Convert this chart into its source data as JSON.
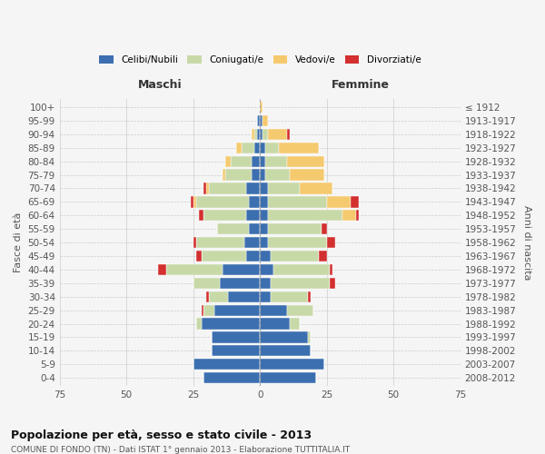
{
  "age_groups": [
    "100+",
    "95-99",
    "90-94",
    "85-89",
    "80-84",
    "75-79",
    "70-74",
    "65-69",
    "60-64",
    "55-59",
    "50-54",
    "45-49",
    "40-44",
    "35-39",
    "30-34",
    "25-29",
    "20-24",
    "15-19",
    "10-14",
    "5-9",
    "0-4"
  ],
  "birth_years": [
    "≤ 1912",
    "1913-1917",
    "1918-1922",
    "1923-1927",
    "1928-1932",
    "1933-1937",
    "1938-1942",
    "1943-1947",
    "1948-1952",
    "1953-1957",
    "1958-1962",
    "1963-1967",
    "1968-1972",
    "1973-1977",
    "1978-1982",
    "1983-1987",
    "1988-1992",
    "1993-1997",
    "1998-2002",
    "2003-2007",
    "2008-2012"
  ],
  "colors": {
    "celibe": "#3c6faf",
    "coniugato": "#c8d9a8",
    "vedovo": "#f5c96e",
    "divorziato": "#d32f2f"
  },
  "maschi": {
    "celibe": [
      0,
      1,
      1,
      2,
      3,
      3,
      5,
      4,
      5,
      4,
      6,
      5,
      14,
      15,
      12,
      17,
      22,
      18,
      18,
      25,
      21
    ],
    "coniugato": [
      0,
      0,
      1,
      5,
      8,
      10,
      14,
      20,
      16,
      12,
      18,
      17,
      21,
      10,
      7,
      4,
      2,
      0,
      0,
      0,
      0
    ],
    "vedovo": [
      0,
      0,
      1,
      2,
      2,
      1,
      1,
      1,
      0,
      0,
      0,
      0,
      0,
      0,
      0,
      0,
      0,
      0,
      0,
      0,
      0
    ],
    "divorziato": [
      0,
      0,
      0,
      0,
      0,
      0,
      1,
      1,
      2,
      0,
      1,
      2,
      3,
      0,
      1,
      1,
      0,
      0,
      0,
      0,
      0
    ]
  },
  "femmine": {
    "nubile": [
      0,
      1,
      1,
      2,
      2,
      2,
      3,
      3,
      3,
      3,
      3,
      4,
      5,
      4,
      4,
      10,
      11,
      18,
      19,
      24,
      21
    ],
    "coniugata": [
      0,
      0,
      2,
      5,
      8,
      9,
      12,
      22,
      28,
      20,
      22,
      18,
      21,
      22,
      14,
      10,
      4,
      1,
      0,
      0,
      0
    ],
    "vedova": [
      1,
      2,
      7,
      15,
      14,
      13,
      12,
      9,
      5,
      0,
      0,
      0,
      0,
      0,
      0,
      0,
      0,
      0,
      0,
      0,
      0
    ],
    "divorziata": [
      0,
      0,
      1,
      0,
      0,
      0,
      0,
      3,
      1,
      2,
      3,
      3,
      1,
      2,
      1,
      0,
      0,
      0,
      0,
      0,
      0
    ]
  },
  "xlim": 75,
  "title": "Popolazione per età, sesso e stato civile - 2013",
  "subtitle": "COMUNE DI FONDO (TN) - Dati ISTAT 1° gennaio 2013 - Elaborazione TUTTITALIA.IT",
  "ylabel_left": "Fasce di età",
  "ylabel_right": "Anni di nascita",
  "xlabel_left": "Maschi",
  "xlabel_right": "Femmine",
  "bg_color": "#f5f5f5",
  "grid_color": "#cccccc"
}
